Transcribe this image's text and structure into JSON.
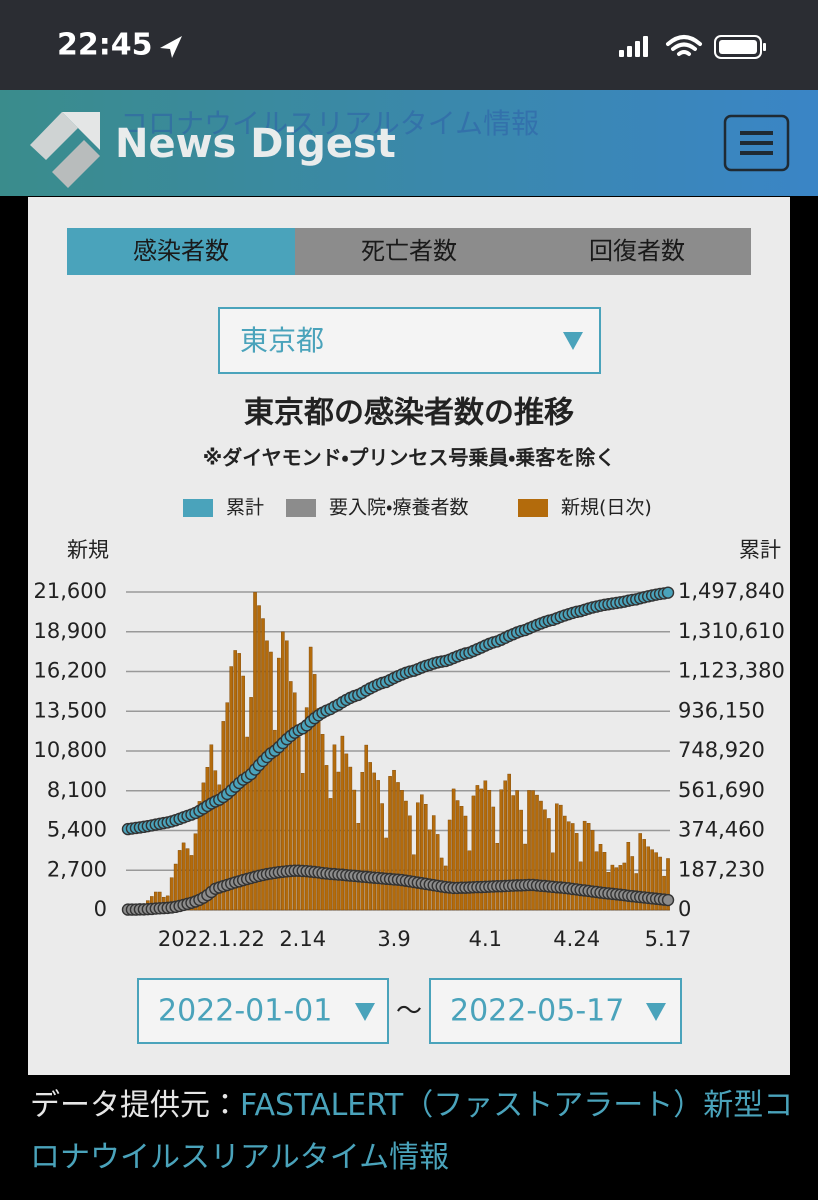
{
  "status_bar": {
    "time": "22:45"
  },
  "header": {
    "logo_text": "News Digest",
    "ghost_text": "コロナウイルスリアルタイム情報"
  },
  "tabs": [
    "感染者数",
    "死亡者数",
    "回復者数"
  ],
  "region_select": "東京都",
  "chart_data": {
    "type": "combo",
    "title": "東京都の感染者数の推移",
    "subtitle": "※ダイヤモンド・プリンセス号乗員・乗客を除く",
    "y_label": "新規",
    "y2_label": "累計",
    "categories": [
      null,
      null,
      null,
      null,
      null,
      null,
      null,
      null,
      null,
      null,
      null,
      null,
      null,
      null,
      null,
      null,
      null,
      null,
      null,
      null,
      null,
      "2022.1.22",
      null,
      null,
      null,
      null,
      null,
      null,
      null,
      null,
      null,
      null,
      null,
      null,
      null,
      null,
      null,
      null,
      null,
      null,
      null,
      null,
      null,
      null,
      "2.14",
      null,
      null,
      null,
      null,
      null,
      null,
      null,
      null,
      null,
      null,
      null,
      null,
      null,
      null,
      null,
      null,
      null,
      null,
      null,
      null,
      null,
      null,
      "3.9",
      null,
      null,
      null,
      null,
      null,
      null,
      null,
      null,
      null,
      null,
      null,
      null,
      null,
      null,
      null,
      null,
      null,
      null,
      null,
      null,
      null,
      null,
      "4.1",
      null,
      null,
      null,
      null,
      null,
      null,
      null,
      null,
      null,
      null,
      null,
      null,
      null,
      null,
      null,
      null,
      null,
      null,
      null,
      null,
      null,
      null,
      "4.24",
      null,
      null,
      null,
      null,
      null,
      null,
      null,
      null,
      null,
      null,
      null,
      null,
      null,
      null,
      null,
      null,
      null,
      null,
      null,
      null,
      null,
      null,
      "5.17"
    ],
    "series": [
      {
        "name": "累計",
        "type": "line",
        "axis": "y2",
        "color": "#4aa3bb",
        "values": [
          381100,
          383700,
          386300,
          388900,
          391800,
          394900,
          398400,
          402100,
          405800,
          409200,
          412600,
          417300,
          423000,
          429500,
          436600,
          443200,
          449400,
          457100,
          467000,
          478100,
          490300,
          501600,
          511000,
          519500,
          532400,
          546400,
          563000,
          580600,
          598000,
          613900,
          625700,
          640100,
          661700,
          682400,
          702200,
          720500,
          738000,
          750200,
          767300,
          786200,
          804500,
          820000,
          834800,
          846500,
          855800,
          869600,
          887400,
          903400,
          917100,
          929100,
          938900,
          946500,
          957700,
          967100,
          978900,
          989500,
          999200,
          1007400,
          1013300,
          1022600,
          1033800,
          1043900,
          1053200,
          1062000,
          1069200,
          1074100,
          1083200,
          1092700,
          1101400,
          1109500,
          1116900,
          1123300,
          1127100,
          1134400,
          1142200,
          1149400,
          1154800,
          1161300,
          1166400,
          1169900,
          1172900,
          1179100,
          1187300,
          1194700,
          1201800,
          1208200,
          1212200,
          1219900,
          1228400,
          1236600,
          1245400,
          1253500,
          1260500,
          1265100,
          1273200,
          1282000,
          1291200,
          1299000,
          1307100,
          1313900,
          1318400,
          1326500,
          1334600,
          1342400,
          1349800,
          1356600,
          1362800,
          1366700,
          1373900,
          1381100,
          1387500,
          1393500,
          1399300,
          1404500,
          1407800,
          1413800,
          1419700,
          1425100,
          1429100,
          1433600,
          1437500,
          1440100,
          1443200,
          1446100,
          1449100,
          1452300,
          1456900,
          1460500,
          1463000,
          1468200,
          1473000,
          1477300,
          1481400,
          1485300,
          1488900,
          1491200,
          1494700
        ]
      },
      {
        "name": "要入院・療養者数",
        "type": "line",
        "axis": "y2",
        "color": "#8c8c8c",
        "values": [
          2000,
          2000,
          2000,
          3000,
          3000,
          4000,
          5000,
          7000,
          8000,
          9000,
          10000,
          12000,
          15000,
          19000,
          24000,
          29000,
          34000,
          40000,
          48000,
          58000,
          70000,
          85000,
          100000,
          106000,
          112000,
          118000,
          124000,
          130000,
          135000,
          141000,
          146000,
          151000,
          156000,
          161000,
          165000,
          169000,
          172000,
          175000,
          178000,
          180000,
          182000,
          184000,
          185000,
          185000,
          184000,
          183000,
          181000,
          179000,
          177000,
          174000,
          172000,
          170000,
          169000,
          167000,
          166000,
          164000,
          162000,
          161000,
          159000,
          157000,
          156000,
          154000,
          152000,
          151000,
          149000,
          147000,
          146000,
          144000,
          143000,
          141000,
          138000,
          135000,
          132000,
          129000,
          126000,
          123000,
          120000,
          117000,
          114000,
          111000,
          108000,
          106000,
          104000,
          104000,
          105000,
          105000,
          106000,
          107000,
          108000,
          108000,
          109000,
          110000,
          111000,
          112000,
          112000,
          113000,
          114000,
          115000,
          116000,
          116000,
          117000,
          118000,
          118000,
          116000,
          114000,
          113000,
          111000,
          109000,
          107000,
          106000,
          104000,
          102000,
          99000,
          97000,
          94000,
          92000,
          90000,
          87000,
          85000,
          82000,
          80000,
          78000,
          76000,
          74000,
          72000,
          70000,
          67000,
          65000,
          63000,
          61000,
          59000,
          57000,
          55000,
          53000,
          51000,
          49000,
          47000
        ]
      },
      {
        "name": "新規(日次)",
        "type": "bar",
        "axis": "y",
        "color": "#b36b0c",
        "values": [
          79,
          84,
          103,
          151,
          390,
          641,
          922,
          1224,
          1223,
          871,
          962,
          2198,
          3124,
          4051,
          4561,
          4172,
          3709,
          5185,
          7377,
          8638,
          9699,
          11227,
          9468,
          8503,
          12813,
          14086,
          16538,
          17631,
          17433,
          15895,
          11751,
          14445,
          21576,
          20679,
          19798,
          18287,
          17526,
          12216,
          17113,
          18891,
          18287,
          15525,
          14760,
          11752,
          9287,
          13750,
          17864,
          16007,
          13693,
          11935,
          9826,
          7583,
          11224,
          9374,
          11815,
          10606,
          9711,
          8149,
          5895,
          9354,
          11204,
          10028,
          9314,
          8807,
          7233,
          4894,
          9081,
          9497,
          8667,
          8134,
          7403,
          6400,
          3758,
          7290,
          7834,
          7186,
          5446,
          6417,
          5136,
          3536,
          2994,
          6116,
          8226,
          7437,
          7044,
          6385,
          4028,
          7751,
          8464,
          8226,
          8777,
          8135,
          6999,
          4535,
          8174,
          8776,
          9235,
          7777,
          8117,
          6789,
          4481,
          8123,
          8112,
          7806,
          7401,
          6812,
          6221,
          3885,
          7216,
          7125,
          6384,
          6001,
          5879,
          5209,
          3273,
          6036,
          5891,
          5410,
          3964,
          4465,
          3922,
          2563,
          3053,
          2880,
          3034,
          3196,
          4605,
          3637,
          2480,
          5200,
          4800,
          4300,
          4100,
          3900,
          3600,
          2300,
          3500
        ]
      }
    ],
    "ylim": [
      0,
      21600
    ],
    "yticks": [
      0,
      {
        "value": 2700,
        "label": "2,700"
      },
      {
        "value": 5400,
        "label": "5,400"
      },
      {
        "value": 8100,
        "label": "8,100"
      },
      {
        "value": 10800,
        "label": "10,800"
      },
      {
        "value": 13500,
        "label": "13,500"
      },
      {
        "value": 16200,
        "label": "16,200"
      },
      {
        "value": 18900,
        "label": "18,900"
      },
      {
        "value": 21600,
        "label": "21,600"
      }
    ],
    "y2lim": [
      0,
      1497840
    ],
    "y2ticks": [
      0,
      {
        "value": 187230,
        "label": "187,230"
      },
      {
        "value": 374460,
        "label": "374,460"
      },
      {
        "value": 561690,
        "label": "561,690"
      },
      {
        "value": 748920,
        "label": "748,920"
      },
      {
        "value": 936150,
        "label": "936,150"
      },
      {
        "value": 1123380,
        "label": "1,123,380"
      },
      {
        "value": 1310610,
        "label": "1,310,610"
      },
      {
        "value": 1497840,
        "label": "1,497,840"
      }
    ],
    "grid": true
  },
  "date_range": {
    "start": "2022-01-01",
    "separator": "〜",
    "end": "2022-05-17"
  },
  "footer": {
    "label": "データ提供元：",
    "link": "FASTALERT（ファストアラート）新型コロナウイルスリアルタイム情報"
  }
}
